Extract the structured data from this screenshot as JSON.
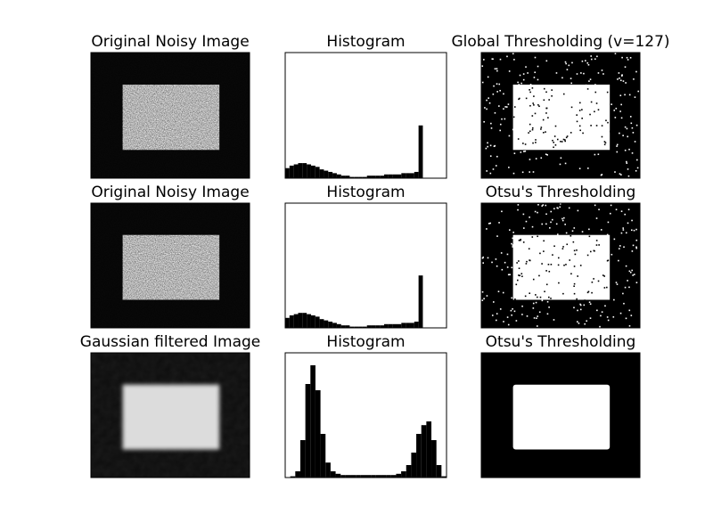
{
  "chart_data": [
    {
      "type": "image",
      "title": "Original Noisy Image",
      "style": "noisy"
    },
    {
      "type": "histogram",
      "title": "Histogram",
      "color": "#000000",
      "xlim": [
        0,
        300
      ],
      "ylim": [
        0,
        100
      ],
      "bins": [
        0,
        8,
        16,
        24,
        32,
        40,
        48,
        56,
        64,
        72,
        80,
        88,
        96,
        104,
        112,
        120,
        128,
        136,
        144,
        152,
        160,
        168,
        176,
        184,
        192,
        200,
        208,
        216,
        224,
        232,
        240,
        248,
        256
      ],
      "values": [
        8,
        10,
        11,
        12,
        12,
        11,
        10,
        9,
        7,
        6,
        5,
        4,
        3,
        2,
        2,
        1,
        1,
        1,
        1,
        2,
        2,
        2,
        2,
        3,
        3,
        3,
        3,
        4,
        4,
        4,
        5,
        42
      ]
    },
    {
      "type": "image",
      "title": "Global Thresholding (v=127)",
      "style": "binary-noisy"
    },
    {
      "type": "image",
      "title": "Original Noisy Image",
      "style": "noisy"
    },
    {
      "type": "histogram",
      "title": "Histogram",
      "color": "#000000",
      "xlim": [
        0,
        300
      ],
      "ylim": [
        0,
        100
      ],
      "bins": [
        0,
        8,
        16,
        24,
        32,
        40,
        48,
        56,
        64,
        72,
        80,
        88,
        96,
        104,
        112,
        120,
        128,
        136,
        144,
        152,
        160,
        168,
        176,
        184,
        192,
        200,
        208,
        216,
        224,
        232,
        240,
        248,
        256
      ],
      "values": [
        8,
        10,
        11,
        12,
        12,
        11,
        10,
        9,
        7,
        6,
        5,
        4,
        3,
        2,
        2,
        1,
        1,
        1,
        1,
        2,
        2,
        2,
        2,
        3,
        3,
        3,
        3,
        4,
        4,
        4,
        5,
        42
      ]
    },
    {
      "type": "image",
      "title": "Otsu's Thresholding",
      "style": "binary-noisy"
    },
    {
      "type": "image",
      "title": "Gaussian filtered Image",
      "style": "blurred"
    },
    {
      "type": "histogram",
      "title": "Histogram",
      "color": "#000000",
      "xlim": [
        0,
        256
      ],
      "ylim": [
        0,
        100
      ],
      "bins": [
        0,
        8,
        16,
        24,
        32,
        40,
        48,
        56,
        64,
        72,
        80,
        88,
        96,
        104,
        112,
        120,
        128,
        136,
        144,
        152,
        160,
        168,
        176,
        184,
        192,
        200,
        208,
        216,
        224,
        232,
        240,
        248,
        256
      ],
      "values": [
        0,
        1,
        5,
        30,
        75,
        90,
        70,
        35,
        12,
        5,
        3,
        2,
        2,
        2,
        2,
        2,
        2,
        2,
        2,
        2,
        2,
        2,
        3,
        5,
        10,
        20,
        35,
        42,
        45,
        30,
        10,
        1
      ]
    },
    {
      "type": "image",
      "title": "Otsu's Thresholding",
      "style": "binary-clean"
    }
  ]
}
